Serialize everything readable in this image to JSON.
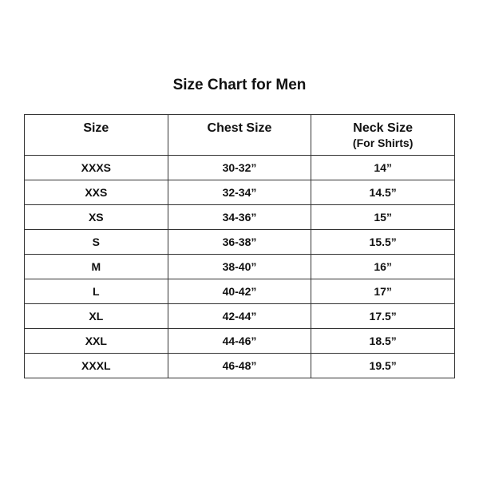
{
  "title": "Size Chart for Men",
  "headers": {
    "size": "Size",
    "chest": "Chest Size",
    "neck": "Neck Size",
    "neck_sub": "(For Shirts)"
  },
  "rows": [
    {
      "size": "XXXS",
      "chest": "30-32”",
      "neck": "14”"
    },
    {
      "size": "XXS",
      "chest": "32-34”",
      "neck": "14.5”"
    },
    {
      "size": "XS",
      "chest": "34-36”",
      "neck": "15”"
    },
    {
      "size": "S",
      "chest": "36-38”",
      "neck": "15.5”"
    },
    {
      "size": "M",
      "chest": "38-40”",
      "neck": "16”"
    },
    {
      "size": "L",
      "chest": "40-42”",
      "neck": "17”"
    },
    {
      "size": "XL",
      "chest": "42-44”",
      "neck": "17.5”"
    },
    {
      "size": "XXL",
      "chest": "44-46”",
      "neck": "18.5”"
    },
    {
      "size": "XXXL",
      "chest": "46-48”",
      "neck": "19.5”"
    }
  ]
}
